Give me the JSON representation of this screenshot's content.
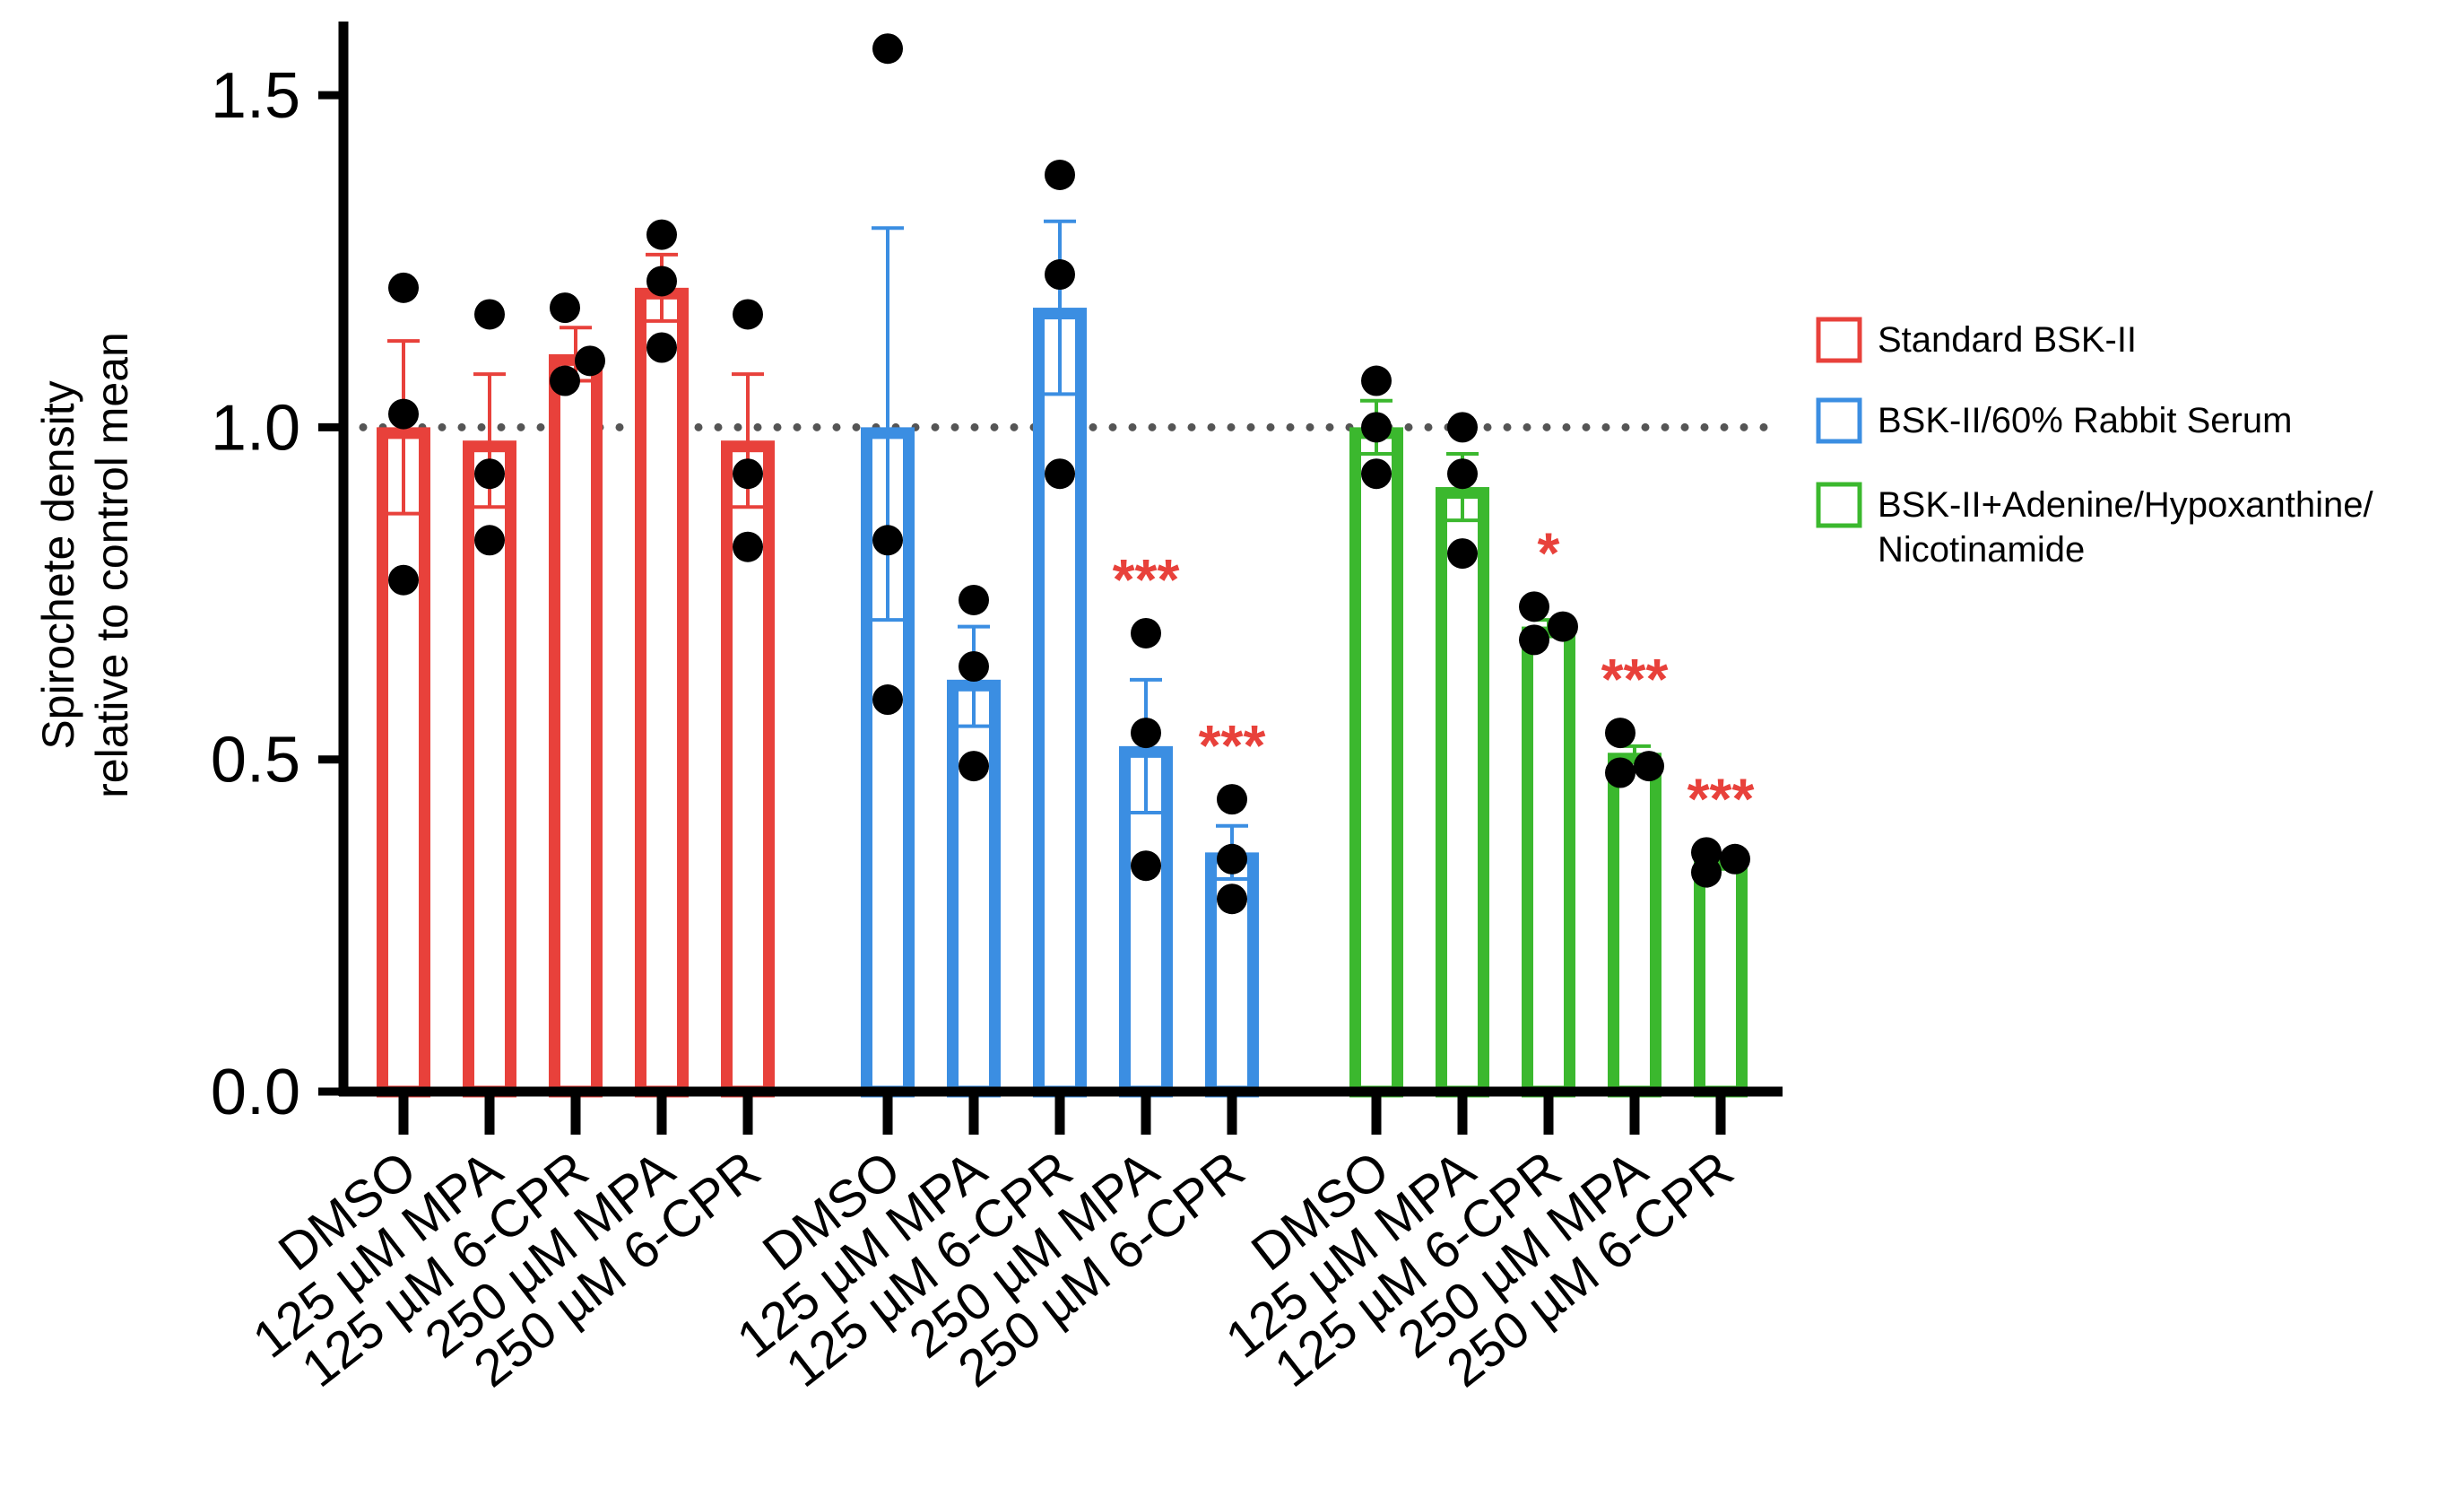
{
  "chart_data": {
    "type": "bar",
    "ylabel": [
      "Spirochete density",
      "relative to control mean"
    ],
    "ylim": [
      0,
      1.6
    ],
    "yticks": [
      "0.0",
      "0.5",
      "1.0",
      "1.5"
    ],
    "reference_line": 1.0,
    "categories": [
      "DMSO",
      "125 µM MPA",
      "125 µM 6-CPR",
      "250 µM MPA",
      "250 µM 6-CPR"
    ],
    "series": [
      {
        "name": "Standard BSK-II",
        "color": "#e8413b",
        "values": [
          1.0,
          0.98,
          1.11,
          1.21,
          0.98
        ],
        "error_upper": [
          1.13,
          1.08,
          1.15,
          1.26,
          1.08
        ],
        "error_lower": [
          0.87,
          0.88,
          1.07,
          1.16,
          0.88
        ],
        "points": [
          [
            1.21,
            1.02,
            0.77
          ],
          [
            1.17,
            0.93,
            0.83
          ],
          [
            1.18,
            1.07,
            1.1
          ],
          [
            1.29,
            1.22,
            1.12
          ],
          [
            1.17,
            0.93,
            0.82
          ]
        ],
        "significance": [
          "",
          "",
          "",
          "",
          ""
        ]
      },
      {
        "name": "BSK-II/60% Rabbit Serum",
        "color": "#3b8ee2",
        "values": [
          1.0,
          0.62,
          1.18,
          0.52,
          0.36
        ],
        "error_upper": [
          1.3,
          0.7,
          1.31,
          0.62,
          0.4
        ],
        "error_lower": [
          0.71,
          0.55,
          1.05,
          0.42,
          0.32
        ],
        "points": [
          [
            1.57,
            0.83,
            0.59
          ],
          [
            0.74,
            0.64,
            0.49
          ],
          [
            1.38,
            1.23,
            0.93
          ],
          [
            0.69,
            0.54,
            0.34
          ],
          [
            0.44,
            0.35,
            0.29
          ]
        ],
        "significance": [
          "",
          "",
          "",
          "***",
          "***"
        ]
      },
      {
        "name": "BSK-II+Adenine/Hypoxanthine/Nicotinamide",
        "legend_lines": [
          "BSK-II+Adenine/Hypoxanthine/",
          "Nicotinamide"
        ],
        "color": "#3bb82e",
        "values": [
          1.0,
          0.91,
          0.7,
          0.51,
          0.35
        ],
        "error_upper": [
          1.04,
          0.96,
          0.71,
          0.52,
          0.35
        ],
        "error_lower": [
          0.96,
          0.86,
          0.69,
          0.5,
          0.34
        ],
        "points": [
          [
            1.07,
            1.0,
            0.93
          ],
          [
            1.0,
            0.93,
            0.81
          ],
          [
            0.73,
            0.68,
            0.7
          ],
          [
            0.54,
            0.48,
            0.49
          ],
          [
            0.33,
            0.36,
            0.35
          ]
        ],
        "significance": [
          "",
          "",
          "*",
          "***",
          "***"
        ]
      }
    ]
  }
}
